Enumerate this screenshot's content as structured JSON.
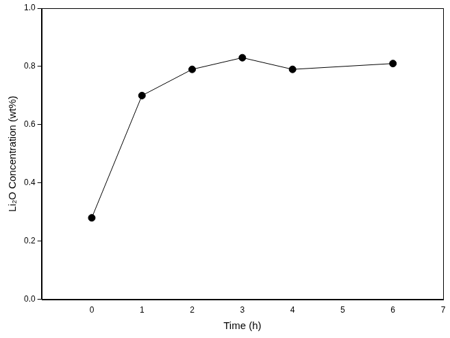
{
  "chart_data": {
    "type": "line",
    "x_label": "Time (h)",
    "y_label": "Li₂O Concentration (wt%)",
    "x": [
      0,
      1,
      2,
      3,
      4,
      6
    ],
    "values": [
      0.28,
      0.7,
      0.79,
      0.83,
      0.79,
      0.81
    ],
    "color": "#000000",
    "marker": "circle",
    "line_style": "solid",
    "xlim": [
      -1,
      7
    ],
    "xticks": [
      0,
      1,
      2,
      3,
      4,
      5,
      6,
      7
    ],
    "ylim": [
      0,
      1
    ],
    "yticks": [
      {
        "value": 0,
        "label": "0.0"
      },
      0.2,
      0.4,
      0.6,
      0.8,
      {
        "value": 1,
        "label": "1.0"
      }
    ],
    "grid": false
  }
}
